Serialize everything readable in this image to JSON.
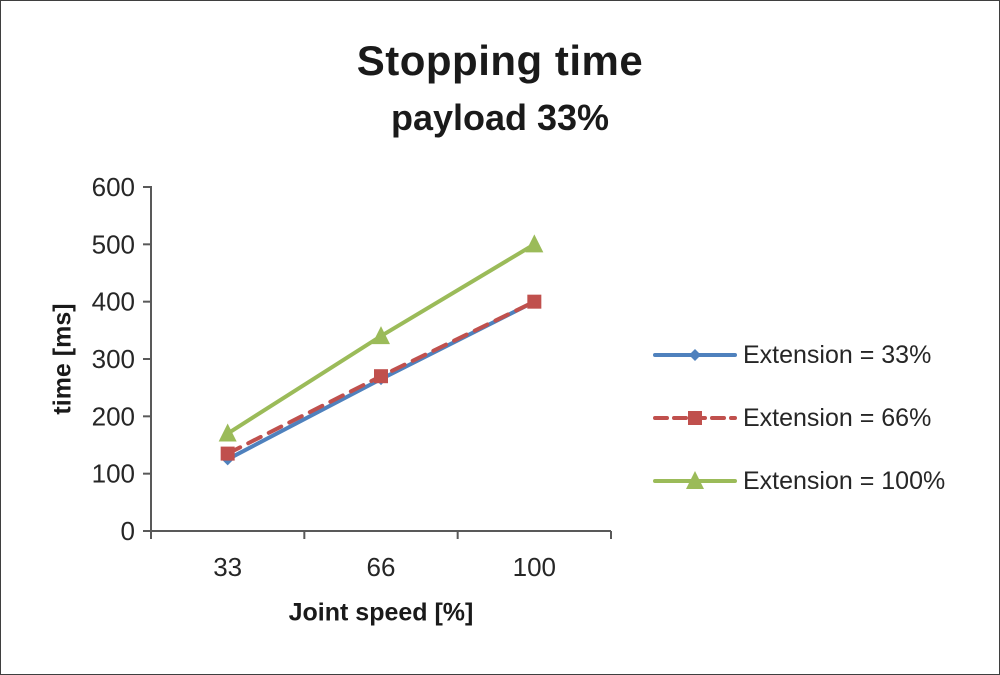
{
  "title": "Stopping time",
  "subtitle": "payload 33%",
  "chart_data": {
    "type": "line",
    "title": "Stopping time",
    "subtitle": "payload 33%",
    "xlabel": "Joint speed [%]",
    "ylabel": "time [ms]",
    "categories": [
      "33",
      "66",
      "100"
    ],
    "ylim": [
      0,
      600
    ],
    "ytick_step": 100,
    "grid": false,
    "legend_position": "right",
    "axis_color": "#595959",
    "series": [
      {
        "name": "Extension = 33%",
        "values": [
          125,
          265,
          400
        ],
        "color": "#4F81BD",
        "marker": "diamond",
        "dash": "solid"
      },
      {
        "name": "Extension = 66%",
        "values": [
          135,
          270,
          400
        ],
        "color": "#C0504D",
        "marker": "square",
        "dash": "dashed"
      },
      {
        "name": "Extension = 100%",
        "values": [
          170,
          340,
          500
        ],
        "color": "#9BBB59",
        "marker": "triangle",
        "dash": "solid"
      }
    ]
  }
}
